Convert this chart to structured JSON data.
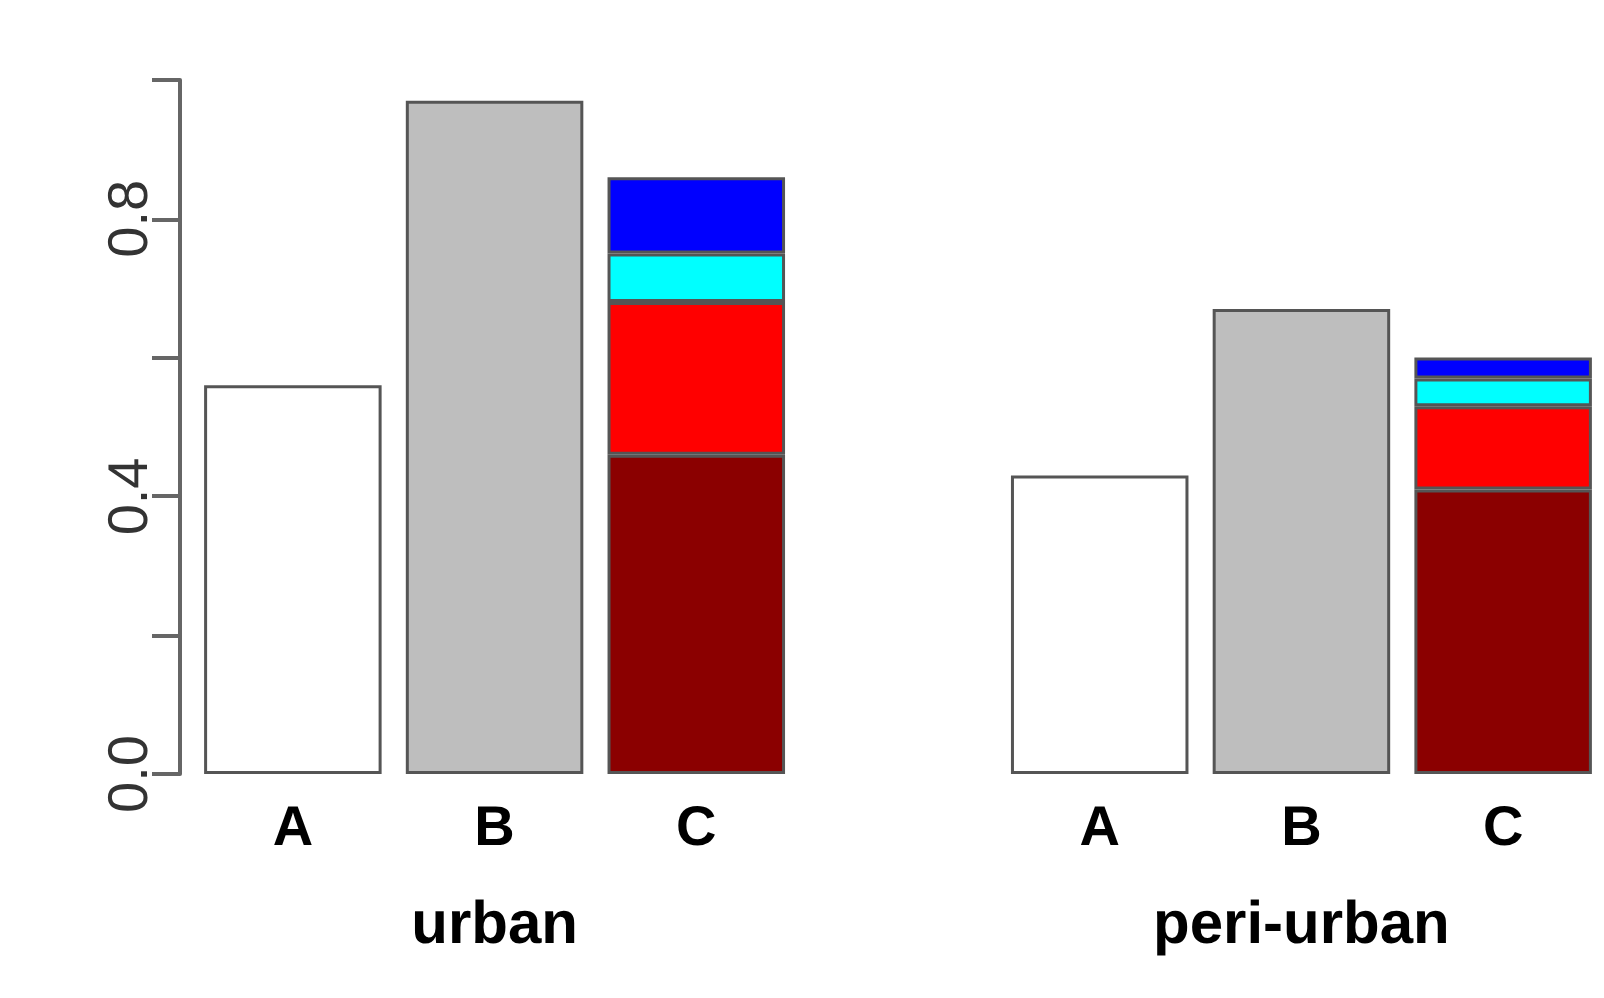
{
  "chart_data": {
    "type": "bar",
    "categories": [
      "A",
      "B",
      "C",
      null,
      "A",
      "B",
      "C"
    ],
    "stacked": true,
    "annotations": [
      "urban",
      "peri-urban"
    ],
    "ylim": [
      0,
      1
    ],
    "yticks": [
      {
        "value": 0,
        "label": "0.0"
      },
      {
        "value": 0.2,
        "label": null
      },
      {
        "value": 0.4,
        "label": "0.4"
      },
      {
        "value": 0.6,
        "label": null
      },
      {
        "value": 0.8,
        "label": "0.8"
      },
      {
        "value": 1,
        "label": null
      }
    ],
    "grid": false,
    "series": [
      {
        "color": "#ffffff",
        "values": [
          0.56,
          null,
          null,
          null,
          0.43,
          null,
          null
        ]
      },
      {
        "color": "#bebebe",
        "values": [
          null,
          0.97,
          null,
          null,
          null,
          0.67,
          null
        ]
      },
      {
        "color": "#8b0000",
        "values": [
          null,
          null,
          0.46,
          null,
          null,
          null,
          0.41
        ]
      },
      {
        "color": "#ff0000",
        "values": [
          null,
          null,
          0.22,
          null,
          null,
          null,
          0.12
        ]
      },
      {
        "color": "#00ffff",
        "values": [
          null,
          null,
          0.07,
          null,
          null,
          null,
          0.04
        ]
      },
      {
        "color": "#0000ff",
        "values": [
          null,
          null,
          0.11,
          null,
          null,
          null,
          0.03
        ]
      }
    ]
  }
}
